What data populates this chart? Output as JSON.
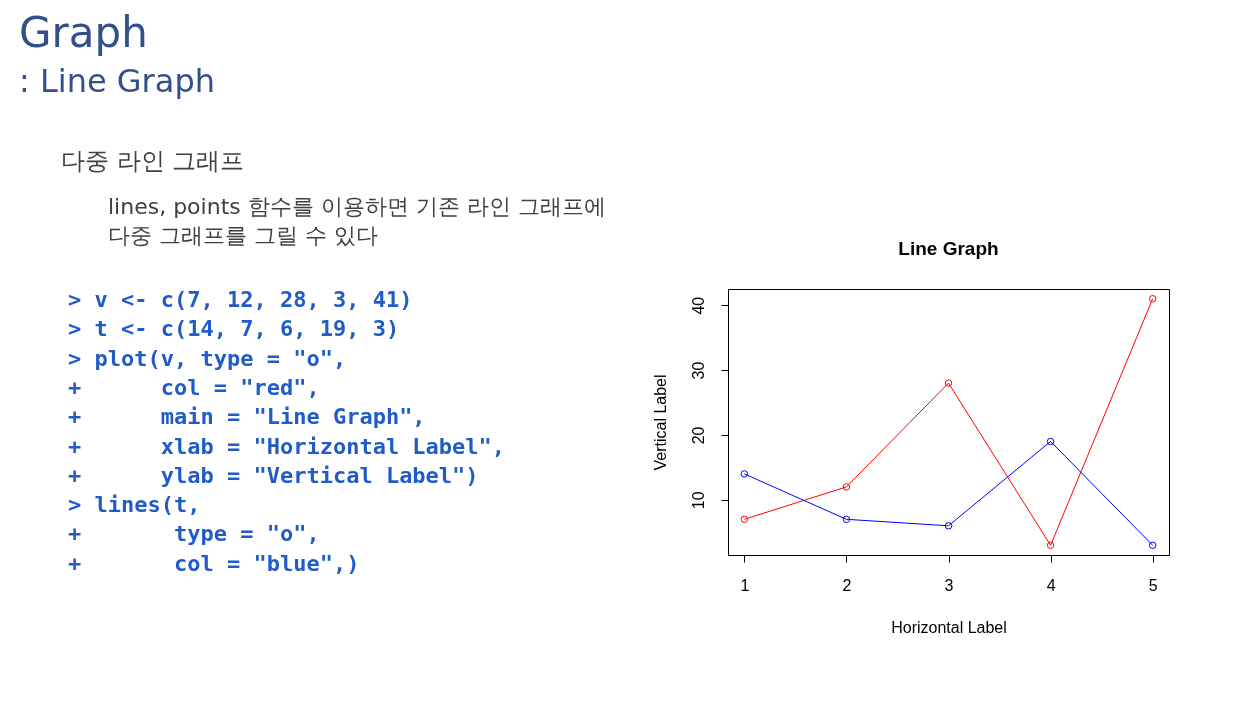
{
  "chart_data": {
    "type": "line",
    "title": "Line Graph",
    "xlabel": "Horizontal Label",
    "ylabel": "Vertical Label",
    "annotations": [
      "Graph",
      ": Line Graph",
      "다중 라인 그래프",
      "lines, points 함수를 이용하면 기존 라인 그래프에\n다중 그래프를 그릴 수 있다",
      "> v <- c(7, 12, 28, 3, 41)",
      "> t <- c(14, 7, 6, 19, 3)",
      "> plot(v, type = \"o\",",
      "+      col = \"red\",",
      "+      main = \"Line Graph\",",
      "+      xlab = \"Horizontal Label\",",
      "+      ylab = \"Vertical Label\")",
      "> lines(t,",
      "+       type = \"o\",",
      "+       col = \"blue\",)"
    ],
    "x": [
      1,
      2,
      3,
      4,
      5
    ],
    "series": [
      {
        "color": "#ff0000",
        "values": [
          7,
          12,
          28,
          3,
          41
        ]
      },
      {
        "color": "#0000ff",
        "values": [
          14,
          7,
          6,
          19,
          3
        ]
      }
    ],
    "xlim": [
      0.84,
      5.16
    ],
    "ylim": [
      1.5,
      42.5
    ],
    "xticks": [
      1,
      2,
      3,
      4,
      5
    ],
    "yticks": [
      10,
      20,
      30,
      40
    ],
    "grid": false,
    "marker": "circle",
    "line_style": "solid"
  }
}
